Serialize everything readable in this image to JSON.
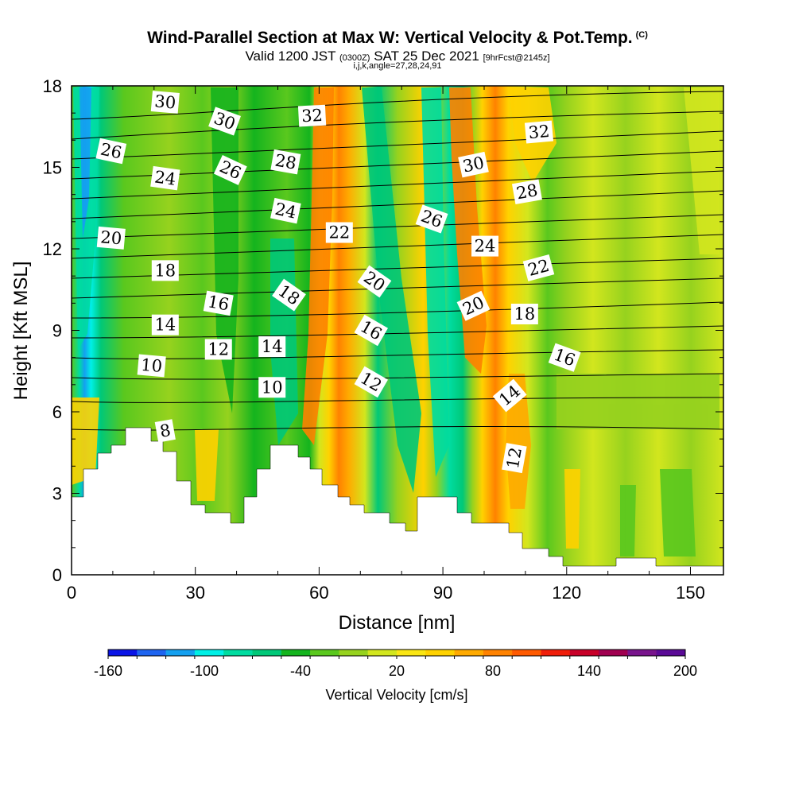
{
  "header": {
    "title": "Wind-Parallel Section at Max W: Vertical Velocity & Pot.Temp.",
    "copyright": "(C)",
    "valid_main_a": "Valid 1200 JST",
    "valid_utc": "(0300Z)",
    "valid_main_b": "SAT 25 Dec 2021",
    "forecast": "[9hrFcst@2145z]",
    "indices": "i,j,k,angle=27,28,24,91"
  },
  "chart_data": {
    "type": "heatmap",
    "title": "Wind-Parallel Section at Max W: Vertical Velocity & Pot.Temp.",
    "xlabel": "Distance [nm]",
    "ylabel": "Height [Kft MSL]",
    "xlim": [
      0,
      158
    ],
    "ylim": [
      0,
      18
    ],
    "x_ticks": [
      0,
      30,
      60,
      90,
      120,
      150
    ],
    "y_ticks": [
      0,
      3,
      6,
      9,
      12,
      15,
      18
    ],
    "x_tick_labels": [
      "0",
      "30",
      "60",
      "90",
      "120",
      "150"
    ],
    "y_tick_labels": [
      "0",
      "3",
      "6",
      "9",
      "12",
      "15",
      "18"
    ],
    "colorbar": {
      "label": "Vertical Velocity [cm/s]",
      "min": -160,
      "max": 200,
      "step": 20,
      "tick_labels": [
        "-160",
        "-100",
        "-40",
        "20",
        "80",
        "140",
        "200"
      ],
      "tick_values": [
        -160,
        -100,
        -40,
        20,
        80,
        140,
        200
      ],
      "colors": [
        "#0a14e6",
        "#1e64f0",
        "#14a0f0",
        "#00f0e6",
        "#00dca0",
        "#00c878",
        "#14b41e",
        "#5ac81e",
        "#96d21e",
        "#d2e61e",
        "#fae614",
        "#ffd200",
        "#ffaa00",
        "#ff8200",
        "#ff5a00",
        "#f01e0a",
        "#c80028",
        "#a00050",
        "#78148c",
        "#5a0a96"
      ]
    },
    "contour_labels": [
      {
        "text": "30",
        "x": 22.7,
        "y": 17.4,
        "angle": 5
      },
      {
        "text": "30",
        "x": 37.1,
        "y": 16.7,
        "angle": 20
      },
      {
        "text": "32",
        "x": 58.3,
        "y": 16.9,
        "angle": -3
      },
      {
        "text": "26",
        "x": 9.6,
        "y": 15.6,
        "angle": 12
      },
      {
        "text": "28",
        "x": 51.9,
        "y": 15.2,
        "angle": 10
      },
      {
        "text": "26",
        "x": 38.5,
        "y": 14.9,
        "angle": 25
      },
      {
        "text": "24",
        "x": 22.7,
        "y": 14.6,
        "angle": 8
      },
      {
        "text": "24",
        "x": 51.9,
        "y": 13.4,
        "angle": 12
      },
      {
        "text": "32",
        "x": 113.3,
        "y": 16.3,
        "angle": -5
      },
      {
        "text": "30",
        "x": 97.4,
        "y": 15.1,
        "angle": -12
      },
      {
        "text": "28",
        "x": 110.4,
        "y": 14.1,
        "angle": -10
      },
      {
        "text": "26",
        "x": 87.3,
        "y": 13.1,
        "angle": 20
      },
      {
        "text": "22",
        "x": 64.9,
        "y": 12.6,
        "angle": 0
      },
      {
        "text": "20",
        "x": 9.6,
        "y": 12.4,
        "angle": 5
      },
      {
        "text": "24",
        "x": 100.2,
        "y": 12.1,
        "angle": 0
      },
      {
        "text": "22",
        "x": 113.2,
        "y": 11.3,
        "angle": -15
      },
      {
        "text": "18",
        "x": 22.7,
        "y": 11.2,
        "angle": 0
      },
      {
        "text": "20",
        "x": 73.4,
        "y": 10.8,
        "angle": 35
      },
      {
        "text": "18",
        "x": 52.7,
        "y": 10.3,
        "angle": 35
      },
      {
        "text": "16",
        "x": 35.6,
        "y": 10.0,
        "angle": 10
      },
      {
        "text": "20",
        "x": 97.4,
        "y": 9.9,
        "angle": -25
      },
      {
        "text": "18",
        "x": 109.8,
        "y": 9.6,
        "angle": 0
      },
      {
        "text": "14",
        "x": 22.7,
        "y": 9.2,
        "angle": 0
      },
      {
        "text": "16",
        "x": 72.6,
        "y": 9.0,
        "angle": 30
      },
      {
        "text": "14",
        "x": 48.6,
        "y": 8.4,
        "angle": 0
      },
      {
        "text": "12",
        "x": 35.6,
        "y": 8.3,
        "angle": 0
      },
      {
        "text": "16",
        "x": 119.5,
        "y": 8.0,
        "angle": 20
      },
      {
        "text": "10",
        "x": 19.4,
        "y": 7.7,
        "angle": 5
      },
      {
        "text": "12",
        "x": 72.6,
        "y": 7.1,
        "angle": 30
      },
      {
        "text": "10",
        "x": 48.6,
        "y": 6.9,
        "angle": 0
      },
      {
        "text": "14",
        "x": 106.2,
        "y": 6.6,
        "angle": -40
      },
      {
        "text": "8",
        "x": 22.7,
        "y": 5.3,
        "angle": -10
      },
      {
        "text": "12",
        "x": 107.3,
        "y": 4.3,
        "angle": -80
      }
    ]
  }
}
